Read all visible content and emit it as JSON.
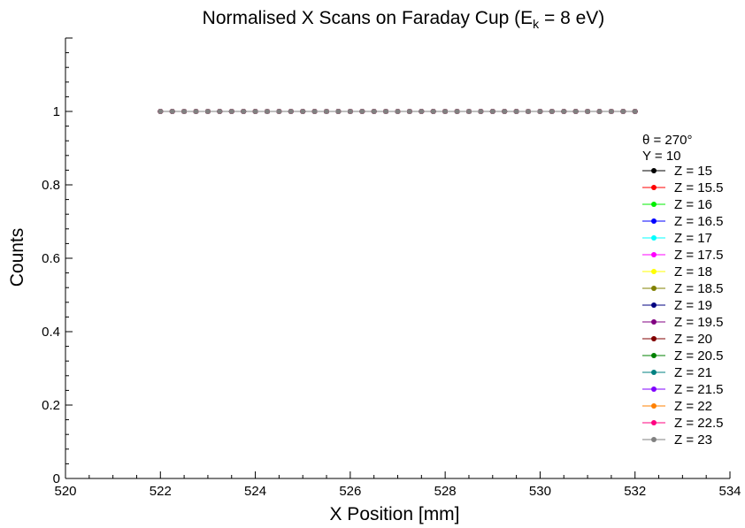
{
  "chart_data": {
    "type": "line",
    "title": {
      "main": "Normalised X Scans on Faraday Cup (E",
      "sub": "k",
      "tail": " = 8 eV)"
    },
    "xlabel": "X Position [mm]",
    "ylabel": "Counts",
    "xlim": [
      520,
      534
    ],
    "ylim": [
      0,
      1.2
    ],
    "x_ticks": [
      520,
      522,
      524,
      526,
      528,
      530,
      532,
      534
    ],
    "y_ticks": [
      0,
      0.2,
      0.4,
      0.6,
      0.8,
      1
    ],
    "x_tick_labels": [
      "520",
      "522",
      "524",
      "526",
      "528",
      "530",
      "532",
      "534"
    ],
    "y_tick_labels": [
      "0",
      "0.2",
      "0.4",
      "0.6",
      "0.8",
      "1"
    ],
    "grid": false,
    "legend_position": "right",
    "legend_header": [
      "θ = 270°",
      "Y = 10"
    ],
    "x": [
      522.0,
      522.25,
      522.5,
      522.75,
      523.0,
      523.25,
      523.5,
      523.75,
      524.0,
      524.25,
      524.5,
      524.75,
      525.0,
      525.25,
      525.5,
      525.75,
      526.0,
      526.25,
      526.5,
      526.75,
      527.0,
      527.25,
      527.5,
      527.75,
      528.0,
      528.25,
      528.5,
      528.75,
      529.0,
      529.25,
      529.5,
      529.75,
      530.0,
      530.25,
      530.5,
      530.75,
      531.0,
      531.25,
      531.5,
      531.75,
      532.0
    ],
    "series": [
      {
        "name": "Z = 15",
        "color": "#000000",
        "values": [
          1.0,
          1.0,
          1.0,
          1.0,
          1.0,
          1.0,
          1.0,
          1.0,
          1.0,
          1.0,
          1.0,
          1.0,
          1.0,
          1.0,
          1.0,
          1.0,
          1.0,
          1.0,
          1.0,
          1.0,
          1.0,
          1.0,
          1.0,
          1.0,
          1.0,
          1.0,
          1.0,
          1.0,
          1.0,
          1.0,
          1.0,
          1.0,
          1.0,
          1.0,
          1.0,
          1.0,
          1.0,
          1.0,
          1.0,
          1.0,
          1.0
        ]
      },
      {
        "name": "Z = 15.5",
        "color": "#ff0000",
        "values": [
          1.0,
          1.0,
          1.0,
          1.0,
          1.0,
          1.0,
          1.0,
          1.0,
          1.0,
          1.0,
          1.0,
          1.0,
          1.0,
          1.0,
          1.0,
          1.0,
          1.0,
          1.0,
          1.0,
          1.0,
          1.0,
          1.0,
          1.0,
          1.0,
          1.0,
          1.0,
          1.0,
          1.0,
          1.0,
          1.0,
          1.0,
          1.0,
          1.0,
          1.0,
          1.0,
          1.0,
          1.0,
          1.0,
          1.0,
          1.0,
          1.0
        ]
      },
      {
        "name": "Z = 16",
        "color": "#00ee00",
        "values": [
          1.0,
          1.0,
          1.0,
          1.0,
          1.0,
          1.0,
          1.0,
          1.0,
          1.0,
          1.0,
          1.0,
          1.0,
          1.0,
          1.0,
          1.0,
          1.0,
          1.0,
          1.0,
          1.0,
          1.0,
          1.0,
          1.0,
          1.0,
          1.0,
          1.0,
          1.0,
          1.0,
          1.0,
          1.0,
          1.0,
          1.0,
          1.0,
          1.0,
          1.0,
          1.0,
          1.0,
          1.0,
          1.0,
          1.0,
          1.0,
          1.0
        ]
      },
      {
        "name": "Z = 16.5",
        "color": "#0000ff",
        "values": [
          1.0,
          1.0,
          1.0,
          1.0,
          1.0,
          1.0,
          1.0,
          1.0,
          1.0,
          1.0,
          1.0,
          1.0,
          1.0,
          1.0,
          1.0,
          1.0,
          1.0,
          1.0,
          1.0,
          1.0,
          1.0,
          1.0,
          1.0,
          1.0,
          1.0,
          1.0,
          1.0,
          1.0,
          1.0,
          1.0,
          1.0,
          1.0,
          1.0,
          1.0,
          1.0,
          1.0,
          1.0,
          1.0,
          1.0,
          1.0,
          1.0
        ]
      },
      {
        "name": "Z = 17",
        "color": "#00ffff",
        "values": [
          1.0,
          1.0,
          1.0,
          1.0,
          1.0,
          1.0,
          1.0,
          1.0,
          1.0,
          1.0,
          1.0,
          1.0,
          1.0,
          1.0,
          1.0,
          1.0,
          1.0,
          1.0,
          1.0,
          1.0,
          1.0,
          1.0,
          1.0,
          1.0,
          1.0,
          1.0,
          1.0,
          1.0,
          1.0,
          1.0,
          1.0,
          1.0,
          1.0,
          1.0,
          1.0,
          1.0,
          1.0,
          1.0,
          1.0,
          1.0,
          1.0
        ]
      },
      {
        "name": "Z = 17.5",
        "color": "#ff00ff",
        "values": [
          1.0,
          1.0,
          1.0,
          1.0,
          1.0,
          1.0,
          1.0,
          1.0,
          1.0,
          1.0,
          1.0,
          1.0,
          1.0,
          1.0,
          1.0,
          1.0,
          1.0,
          1.0,
          1.0,
          1.0,
          1.0,
          1.0,
          1.0,
          1.0,
          1.0,
          1.0,
          1.0,
          1.0,
          1.0,
          1.0,
          1.0,
          1.0,
          1.0,
          1.0,
          1.0,
          1.0,
          1.0,
          1.0,
          1.0,
          1.0,
          1.0
        ]
      },
      {
        "name": "Z = 18",
        "color": "#ffff00",
        "values": [
          1.0,
          1.0,
          1.0,
          1.0,
          1.0,
          1.0,
          1.0,
          1.0,
          1.0,
          1.0,
          1.0,
          1.0,
          1.0,
          1.0,
          1.0,
          1.0,
          1.0,
          1.0,
          1.0,
          1.0,
          1.0,
          1.0,
          1.0,
          1.0,
          1.0,
          1.0,
          1.0,
          1.0,
          1.0,
          1.0,
          1.0,
          1.0,
          1.0,
          1.0,
          1.0,
          1.0,
          1.0,
          1.0,
          1.0,
          1.0,
          1.0
        ]
      },
      {
        "name": "Z = 18.5",
        "color": "#808000",
        "values": [
          1.0,
          1.0,
          1.0,
          1.0,
          1.0,
          1.0,
          1.0,
          1.0,
          1.0,
          1.0,
          1.0,
          1.0,
          1.0,
          1.0,
          1.0,
          1.0,
          1.0,
          1.0,
          1.0,
          1.0,
          1.0,
          1.0,
          1.0,
          1.0,
          1.0,
          1.0,
          1.0,
          1.0,
          1.0,
          1.0,
          1.0,
          1.0,
          1.0,
          1.0,
          1.0,
          1.0,
          1.0,
          1.0,
          1.0,
          1.0,
          1.0
        ]
      },
      {
        "name": "Z = 19",
        "color": "#000080",
        "values": [
          1.0,
          1.0,
          1.0,
          1.0,
          1.0,
          1.0,
          1.0,
          1.0,
          1.0,
          1.0,
          1.0,
          1.0,
          1.0,
          1.0,
          1.0,
          1.0,
          1.0,
          1.0,
          1.0,
          1.0,
          1.0,
          1.0,
          1.0,
          1.0,
          1.0,
          1.0,
          1.0,
          1.0,
          1.0,
          1.0,
          1.0,
          1.0,
          1.0,
          1.0,
          1.0,
          1.0,
          1.0,
          1.0,
          1.0,
          1.0,
          1.0
        ]
      },
      {
        "name": "Z = 19.5",
        "color": "#800080",
        "values": [
          1.0,
          1.0,
          1.0,
          1.0,
          1.0,
          1.0,
          1.0,
          1.0,
          1.0,
          1.0,
          1.0,
          1.0,
          1.0,
          1.0,
          1.0,
          1.0,
          1.0,
          1.0,
          1.0,
          1.0,
          1.0,
          1.0,
          1.0,
          1.0,
          1.0,
          1.0,
          1.0,
          1.0,
          1.0,
          1.0,
          1.0,
          1.0,
          1.0,
          1.0,
          1.0,
          1.0,
          1.0,
          1.0,
          1.0,
          1.0,
          1.0
        ]
      },
      {
        "name": "Z = 20",
        "color": "#800000",
        "values": [
          1.0,
          1.0,
          1.0,
          1.0,
          1.0,
          1.0,
          1.0,
          1.0,
          1.0,
          1.0,
          1.0,
          1.0,
          1.0,
          1.0,
          1.0,
          1.0,
          1.0,
          1.0,
          1.0,
          1.0,
          1.0,
          1.0,
          1.0,
          1.0,
          1.0,
          1.0,
          1.0,
          1.0,
          1.0,
          1.0,
          1.0,
          1.0,
          1.0,
          1.0,
          1.0,
          1.0,
          1.0,
          1.0,
          1.0,
          1.0,
          1.0
        ]
      },
      {
        "name": "Z = 20.5",
        "color": "#008000",
        "values": [
          1.0,
          1.0,
          1.0,
          1.0,
          1.0,
          1.0,
          1.0,
          1.0,
          1.0,
          1.0,
          1.0,
          1.0,
          1.0,
          1.0,
          1.0,
          1.0,
          1.0,
          1.0,
          1.0,
          1.0,
          1.0,
          1.0,
          1.0,
          1.0,
          1.0,
          1.0,
          1.0,
          1.0,
          1.0,
          1.0,
          1.0,
          1.0,
          1.0,
          1.0,
          1.0,
          1.0,
          1.0,
          1.0,
          1.0,
          1.0,
          1.0
        ]
      },
      {
        "name": "Z = 21",
        "color": "#008080",
        "values": [
          1.0,
          1.0,
          1.0,
          1.0,
          1.0,
          1.0,
          1.0,
          1.0,
          1.0,
          1.0,
          1.0,
          1.0,
          1.0,
          1.0,
          1.0,
          1.0,
          1.0,
          1.0,
          1.0,
          1.0,
          1.0,
          1.0,
          1.0,
          1.0,
          1.0,
          1.0,
          1.0,
          1.0,
          1.0,
          1.0,
          1.0,
          1.0,
          1.0,
          1.0,
          1.0,
          1.0,
          1.0,
          1.0,
          1.0,
          1.0,
          1.0
        ]
      },
      {
        "name": "Z = 21.5",
        "color": "#8000ff",
        "values": [
          1.0,
          1.0,
          1.0,
          1.0,
          1.0,
          1.0,
          1.0,
          1.0,
          1.0,
          1.0,
          1.0,
          1.0,
          1.0,
          1.0,
          1.0,
          1.0,
          1.0,
          1.0,
          1.0,
          1.0,
          1.0,
          1.0,
          1.0,
          1.0,
          1.0,
          1.0,
          1.0,
          1.0,
          1.0,
          1.0,
          1.0,
          1.0,
          1.0,
          1.0,
          1.0,
          1.0,
          1.0,
          1.0,
          1.0,
          1.0,
          1.0
        ]
      },
      {
        "name": "Z = 22",
        "color": "#ff8000",
        "values": [
          1.0,
          1.0,
          1.0,
          1.0,
          1.0,
          1.0,
          1.0,
          1.0,
          1.0,
          1.0,
          1.0,
          1.0,
          1.0,
          1.0,
          1.0,
          1.0,
          1.0,
          1.0,
          1.0,
          1.0,
          1.0,
          1.0,
          1.0,
          1.0,
          1.0,
          1.0,
          1.0,
          1.0,
          1.0,
          1.0,
          1.0,
          1.0,
          1.0,
          1.0,
          1.0,
          1.0,
          1.0,
          1.0,
          1.0,
          1.0,
          1.0
        ]
      },
      {
        "name": "Z = 22.5",
        "color": "#ff0080",
        "values": [
          1.0,
          1.0,
          1.0,
          1.0,
          1.0,
          1.0,
          1.0,
          1.0,
          1.0,
          1.0,
          1.0,
          1.0,
          1.0,
          1.0,
          1.0,
          1.0,
          1.0,
          1.0,
          1.0,
          1.0,
          1.0,
          1.0,
          1.0,
          1.0,
          1.0,
          1.0,
          1.0,
          1.0,
          1.0,
          1.0,
          1.0,
          1.0,
          1.0,
          1.0,
          1.0,
          1.0,
          1.0,
          1.0,
          1.0,
          1.0,
          1.0
        ]
      },
      {
        "name": "Z = 23",
        "color": "#808080",
        "values": [
          1.0,
          1.0,
          1.0,
          1.0,
          1.0,
          1.0,
          1.0,
          1.0,
          1.0,
          1.0,
          1.0,
          1.0,
          1.0,
          1.0,
          1.0,
          1.0,
          1.0,
          1.0,
          1.0,
          1.0,
          1.0,
          1.0,
          1.0,
          1.0,
          1.0,
          1.0,
          1.0,
          1.0,
          1.0,
          1.0,
          1.0,
          1.0,
          1.0,
          1.0,
          1.0,
          1.0,
          1.0,
          1.0,
          1.0,
          1.0,
          1.0
        ]
      }
    ]
  }
}
